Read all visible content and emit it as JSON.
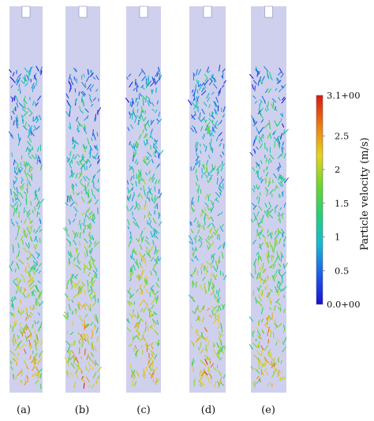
{
  "panels": [
    {
      "label": "(a)"
    },
    {
      "label": "(b)"
    },
    {
      "label": "(c)"
    },
    {
      "label": "(d)"
    },
    {
      "label": "(e)"
    }
  ],
  "colorbar": {
    "title": "Particle velocity  (m/s)",
    "min_label": "0.0+00",
    "max_label": "3.1+00",
    "ticks": [
      "0.5",
      "1",
      "1.5",
      "2",
      "2.5"
    ],
    "min": 0,
    "max": 3.1,
    "tick_values": [
      0.5,
      1,
      1.5,
      2,
      2.5
    ],
    "colors": [
      "#1a0fd6",
      "#1f5ce8",
      "#16b8d6",
      "#25d07a",
      "#6fd62a",
      "#e6d41c",
      "#f07a12",
      "#d61a12"
    ]
  },
  "column_color": "#cfd0ee"
}
